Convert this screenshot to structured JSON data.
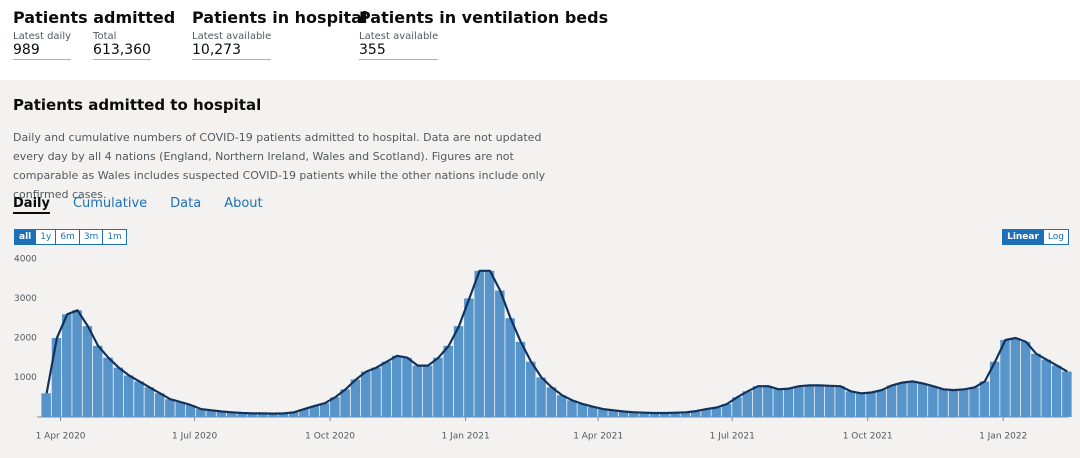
{
  "header": {
    "metrics": [
      {
        "title": "Patients admitted",
        "items": [
          {
            "label": "Latest daily",
            "value": "989"
          },
          {
            "label": "Total",
            "value": "613,360"
          }
        ]
      },
      {
        "title": "Patients in hospital",
        "items": [
          {
            "label": "Latest available",
            "value": "10,273"
          }
        ]
      },
      {
        "title": "Patients in ventilation beds",
        "items": [
          {
            "label": "Latest available",
            "value": "355"
          }
        ]
      }
    ]
  },
  "card": {
    "title": "Patients admitted to hospital",
    "description": "Daily and cumulative numbers of COVID-19 patients admitted to hospital. Data are not updated every day by all 4 nations (England, Northern Ireland, Wales and Scotland). Figures are not comparable as Wales includes suspected COVID-19 patients while the other nations include only confirmed cases.",
    "tabs": [
      "Daily",
      "Cumulative",
      "Data",
      "About"
    ],
    "range_buttons": [
      "all",
      "1y",
      "6m",
      "3m",
      "1m"
    ],
    "scale_buttons": [
      "Linear",
      "Log"
    ]
  },
  "chart_data": {
    "type": "bar",
    "color": "#5694ca",
    "line_color": "#12325c",
    "x": [
      "2020-03-19",
      "2020-03-26",
      "2020-04-02",
      "2020-04-09",
      "2020-04-16",
      "2020-04-23",
      "2020-04-30",
      "2020-05-07",
      "2020-05-14",
      "2020-05-21",
      "2020-05-28",
      "2020-06-04",
      "2020-06-11",
      "2020-06-18",
      "2020-06-25",
      "2020-07-02",
      "2020-07-09",
      "2020-07-16",
      "2020-07-23",
      "2020-07-30",
      "2020-08-06",
      "2020-08-13",
      "2020-08-20",
      "2020-08-27",
      "2020-09-03",
      "2020-09-10",
      "2020-09-17",
      "2020-09-24",
      "2020-10-01",
      "2020-10-08",
      "2020-10-15",
      "2020-10-22",
      "2020-10-29",
      "2020-11-05",
      "2020-11-12",
      "2020-11-19",
      "2020-11-26",
      "2020-12-03",
      "2020-12-10",
      "2020-12-17",
      "2020-12-24",
      "2020-12-31",
      "2021-01-07",
      "2021-01-14",
      "2021-01-21",
      "2021-01-28",
      "2021-02-04",
      "2021-02-11",
      "2021-02-18",
      "2021-02-25",
      "2021-03-04",
      "2021-03-11",
      "2021-03-18",
      "2021-03-25",
      "2021-04-01",
      "2021-04-08",
      "2021-04-15",
      "2021-04-22",
      "2021-04-29",
      "2021-05-06",
      "2021-05-13",
      "2021-05-20",
      "2021-05-27",
      "2021-06-03",
      "2021-06-10",
      "2021-06-17",
      "2021-06-24",
      "2021-07-01",
      "2021-07-08",
      "2021-07-15",
      "2021-07-22",
      "2021-07-29",
      "2021-08-05",
      "2021-08-12",
      "2021-08-19",
      "2021-08-26",
      "2021-09-02",
      "2021-09-09",
      "2021-09-16",
      "2021-09-23",
      "2021-09-30",
      "2021-10-07",
      "2021-10-14",
      "2021-10-21",
      "2021-10-28",
      "2021-11-04",
      "2021-11-11",
      "2021-11-18",
      "2021-11-25",
      "2021-12-02",
      "2021-12-09",
      "2021-12-16",
      "2021-12-23",
      "2021-12-30",
      "2022-01-06",
      "2022-01-13",
      "2022-01-20",
      "2022-01-27",
      "2022-02-03",
      "2022-02-10"
    ],
    "values": [
      600,
      2000,
      2600,
      2700,
      2300,
      1800,
      1500,
      1250,
      1050,
      900,
      750,
      600,
      450,
      380,
      300,
      200,
      170,
      140,
      120,
      100,
      90,
      90,
      85,
      90,
      120,
      200,
      280,
      350,
      500,
      700,
      950,
      1150,
      1250,
      1400,
      1550,
      1500,
      1300,
      1300,
      1500,
      1800,
      2300,
      3000,
      3700,
      3700,
      3200,
      2500,
      1900,
      1400,
      1000,
      750,
      550,
      420,
      330,
      260,
      200,
      170,
      140,
      120,
      110,
      100,
      100,
      110,
      120,
      150,
      200,
      240,
      330,
      500,
      650,
      780,
      780,
      700,
      720,
      780,
      800,
      800,
      790,
      780,
      650,
      600,
      620,
      680,
      800,
      870,
      900,
      850,
      780,
      700,
      680,
      700,
      750,
      900,
      1400,
      1950,
      2000,
      1900,
      1600,
      1450,
      1300,
      1150
    ],
    "xlim": [
      "2020-03-16",
      "2022-02-14"
    ],
    "xticks": [
      {
        "value": "2020-04-01",
        "label": "1 Apr 2020"
      },
      {
        "value": "2020-07-01",
        "label": "1 Jul 2020"
      },
      {
        "value": "2020-10-01",
        "label": "1 Oct 2020"
      },
      {
        "value": "2021-01-01",
        "label": "1 Jan 2021"
      },
      {
        "value": "2021-04-01",
        "label": "1 Apr 2021"
      },
      {
        "value": "2021-07-01",
        "label": "1 Jul 2021"
      },
      {
        "value": "2021-10-01",
        "label": "1 Oct 2021"
      },
      {
        "value": "2022-01-01",
        "label": "1 Jan 2022"
      }
    ],
    "ylim": [
      0,
      4100
    ],
    "yticks": [
      1000,
      2000,
      3000,
      4000
    ],
    "grid": false
  }
}
